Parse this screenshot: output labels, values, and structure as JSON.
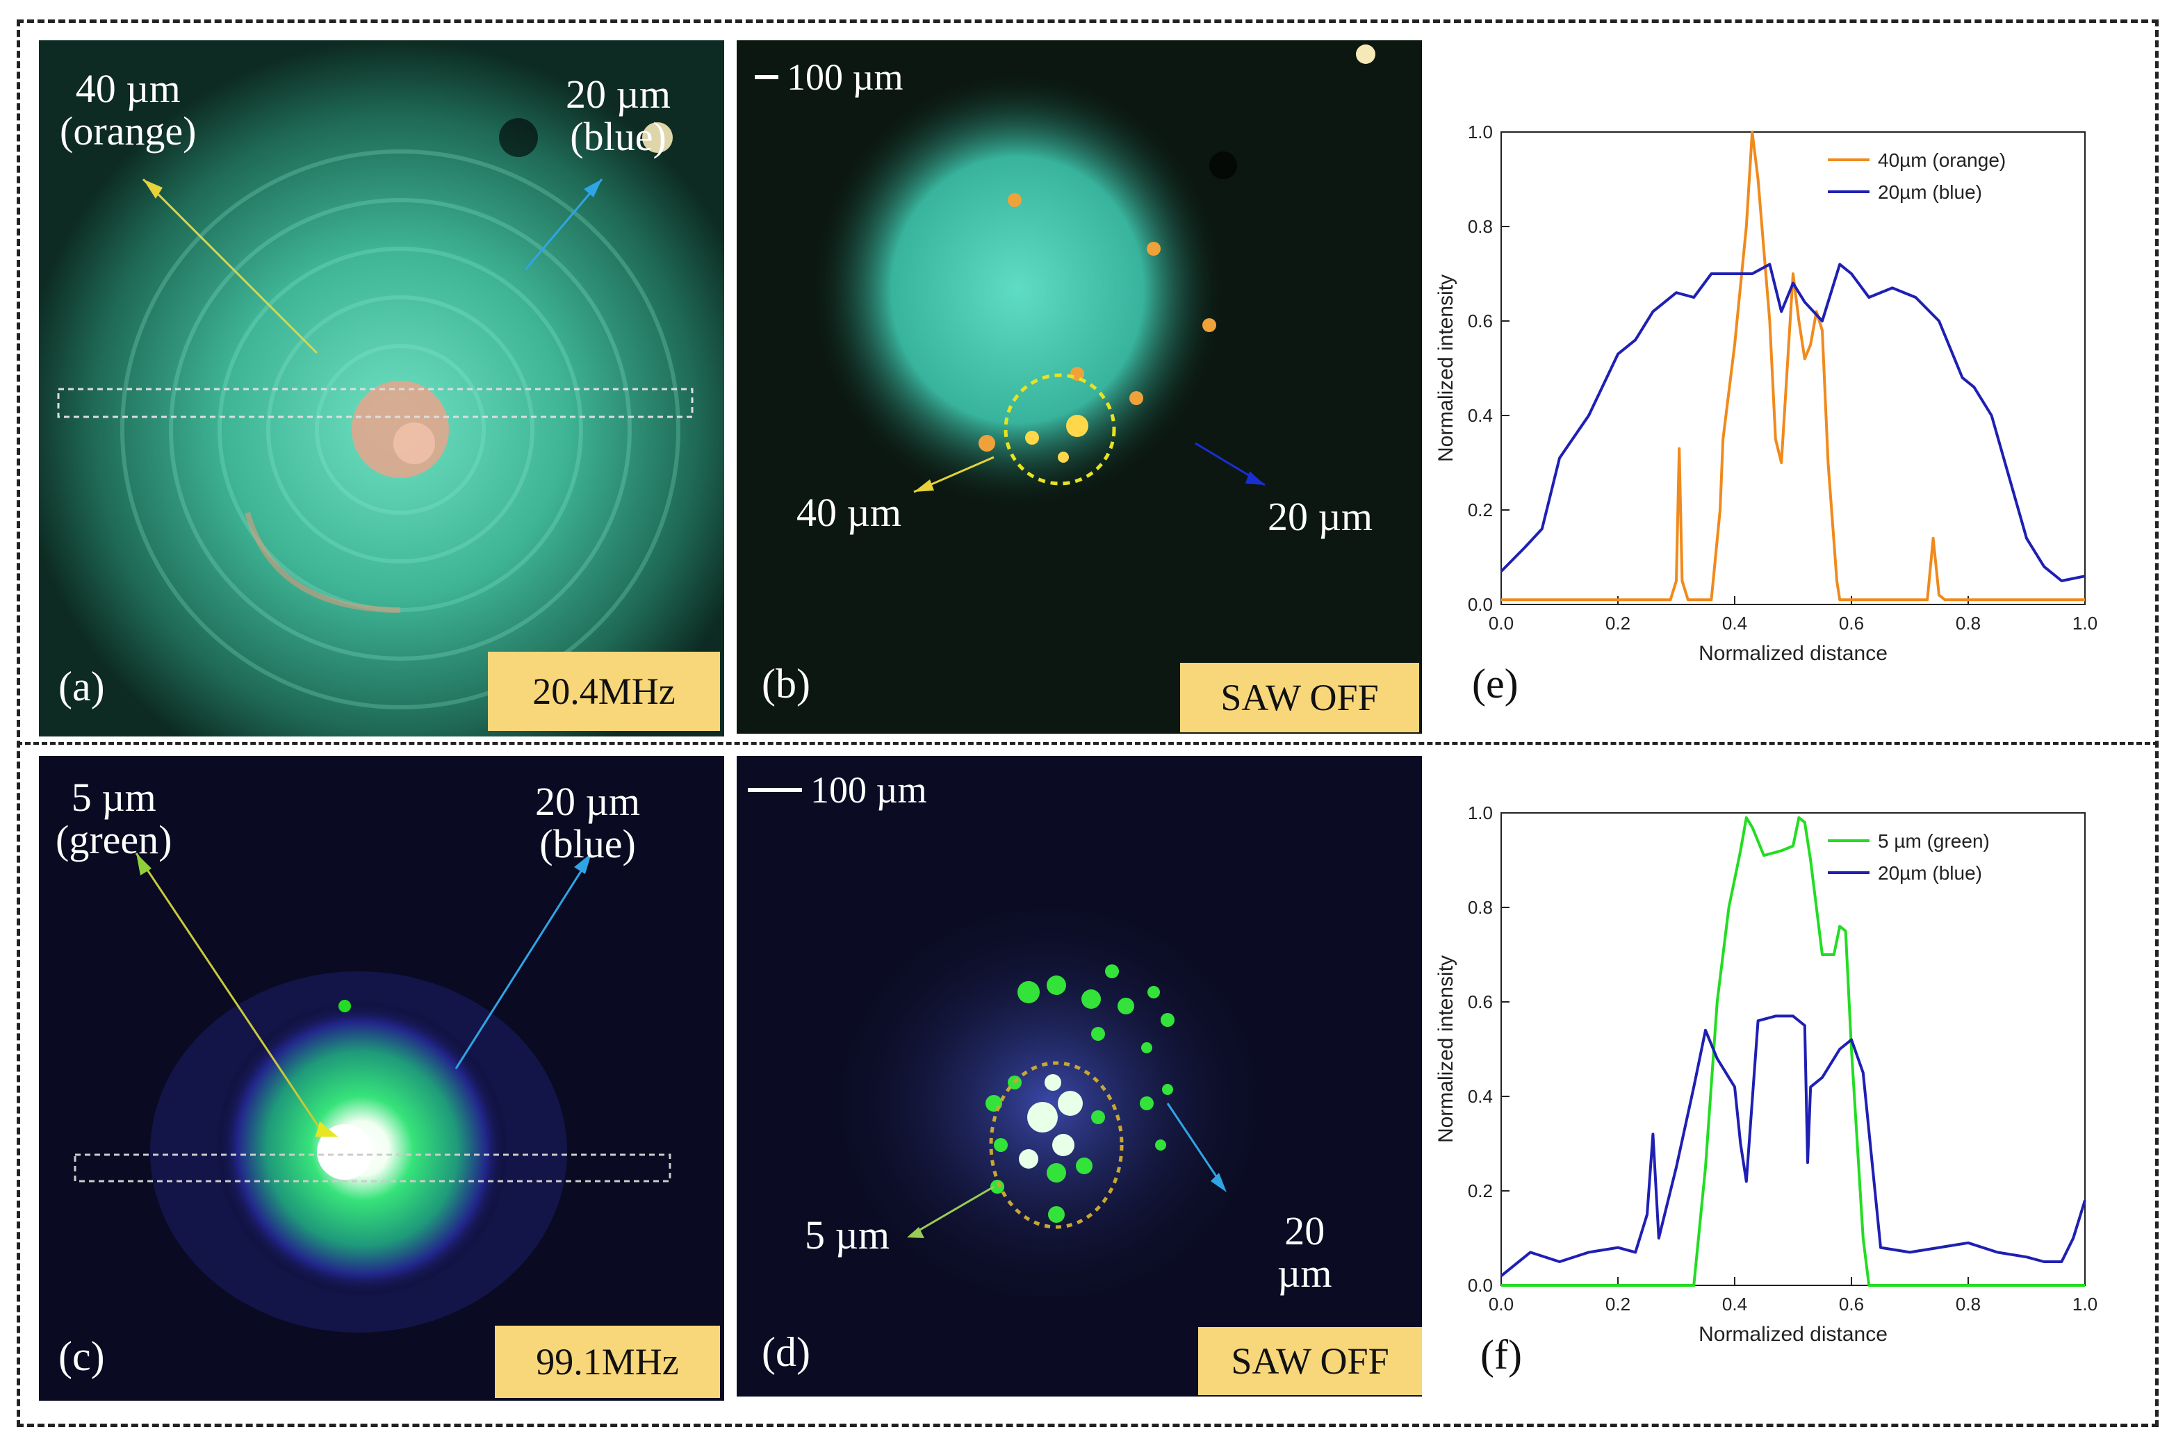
{
  "panels": {
    "a": {
      "label": "(a)",
      "freq": "20.4MHz",
      "ann_left": [
        "40 µm",
        "(orange)"
      ],
      "ann_right": [
        "20 µm",
        "(blue)"
      ]
    },
    "b": {
      "label": "(b)",
      "badge": "SAW OFF",
      "scale": "100 µm",
      "ann_left": "40 µm",
      "ann_right": "20 µm"
    },
    "c": {
      "label": "(c)",
      "freq": "99.1MHz",
      "ann_left": [
        "5 µm",
        "(green)"
      ],
      "ann_right": [
        "20 µm",
        "(blue)"
      ]
    },
    "d": {
      "label": "(d)",
      "badge": "SAW OFF",
      "scale": "100 µm",
      "ann_left": "5 µm",
      "ann_right": [
        "20",
        "µm"
      ]
    },
    "e": {
      "label": "(e)"
    },
    "f": {
      "label": "(f)"
    }
  },
  "colors": {
    "orange": "#f08a1c",
    "blue": "#1f1fb4",
    "green": "#22dd22",
    "badge": "#f8d77a"
  },
  "chart_data": [
    {
      "type": "line",
      "panel": "e",
      "xlabel": "Normalized distance",
      "ylabel": "Normalized intensity",
      "xlim": [
        0,
        1.0
      ],
      "ylim": [
        0,
        1.0
      ],
      "xticks": [
        "0.0",
        "0.2",
        "0.4",
        "0.6",
        "0.8",
        "1.0"
      ],
      "yticks": [
        "0.0",
        "0.2",
        "0.4",
        "0.6",
        "0.8",
        "1.0"
      ],
      "legend": "top-right",
      "series": [
        {
          "name": "40µm (orange)",
          "color": "#f08a1c",
          "x": [
            0,
            0.29,
            0.3,
            0.305,
            0.31,
            0.32,
            0.36,
            0.375,
            0.38,
            0.4,
            0.42,
            0.43,
            0.44,
            0.46,
            0.47,
            0.48,
            0.49,
            0.5,
            0.51,
            0.52,
            0.53,
            0.54,
            0.55,
            0.56,
            0.575,
            0.58,
            0.73,
            0.74,
            0.75,
            0.76,
            1.0
          ],
          "y": [
            0.01,
            0.01,
            0.05,
            0.33,
            0.05,
            0.01,
            0.01,
            0.2,
            0.35,
            0.55,
            0.8,
            1.0,
            0.9,
            0.6,
            0.35,
            0.3,
            0.5,
            0.7,
            0.6,
            0.52,
            0.55,
            0.62,
            0.58,
            0.3,
            0.05,
            0.01,
            0.01,
            0.14,
            0.02,
            0.01,
            0.01
          ]
        },
        {
          "name": "20µm (blue)",
          "color": "#1f1fb4",
          "x": [
            0,
            0.04,
            0.07,
            0.1,
            0.15,
            0.2,
            0.23,
            0.26,
            0.3,
            0.33,
            0.36,
            0.4,
            0.43,
            0.46,
            0.48,
            0.5,
            0.52,
            0.55,
            0.58,
            0.6,
            0.63,
            0.67,
            0.71,
            0.75,
            0.79,
            0.81,
            0.84,
            0.87,
            0.9,
            0.93,
            0.96,
            1.0
          ],
          "y": [
            0.07,
            0.12,
            0.16,
            0.31,
            0.4,
            0.53,
            0.56,
            0.62,
            0.66,
            0.65,
            0.7,
            0.7,
            0.7,
            0.72,
            0.62,
            0.68,
            0.64,
            0.6,
            0.72,
            0.7,
            0.65,
            0.67,
            0.65,
            0.6,
            0.48,
            0.46,
            0.4,
            0.27,
            0.14,
            0.08,
            0.05,
            0.06
          ]
        }
      ]
    },
    {
      "type": "line",
      "panel": "f",
      "xlabel": "Normalized distance",
      "ylabel": "Normalized intensity",
      "xlim": [
        0,
        1.0
      ],
      "ylim": [
        0,
        1.0
      ],
      "xticks": [
        "0.0",
        "0.2",
        "0.4",
        "0.6",
        "0.8",
        "1.0"
      ],
      "yticks": [
        "0.0",
        "0.2",
        "0.4",
        "0.6",
        "0.8",
        "1.0"
      ],
      "legend": "top-right",
      "series": [
        {
          "name": "5 µm  (green)",
          "color": "#22dd22",
          "x": [
            0,
            0.33,
            0.35,
            0.37,
            0.39,
            0.41,
            0.42,
            0.43,
            0.45,
            0.48,
            0.5,
            0.51,
            0.52,
            0.53,
            0.55,
            0.57,
            0.58,
            0.59,
            0.6,
            0.62,
            0.63,
            1.0
          ],
          "y": [
            0.0,
            0.0,
            0.25,
            0.6,
            0.8,
            0.92,
            0.99,
            0.97,
            0.91,
            0.92,
            0.93,
            0.99,
            0.98,
            0.9,
            0.7,
            0.7,
            0.76,
            0.75,
            0.5,
            0.1,
            0.0,
            0.0
          ]
        },
        {
          "name": "20µm (blue)",
          "color": "#1f1fb4",
          "x": [
            0,
            0.05,
            0.1,
            0.15,
            0.2,
            0.23,
            0.25,
            0.26,
            0.27,
            0.3,
            0.33,
            0.35,
            0.37,
            0.4,
            0.41,
            0.42,
            0.44,
            0.47,
            0.5,
            0.52,
            0.525,
            0.53,
            0.55,
            0.58,
            0.6,
            0.62,
            0.65,
            0.7,
            0.75,
            0.8,
            0.85,
            0.9,
            0.93,
            0.96,
            0.98,
            1.0
          ],
          "y": [
            0.02,
            0.07,
            0.05,
            0.07,
            0.08,
            0.07,
            0.15,
            0.32,
            0.1,
            0.25,
            0.42,
            0.54,
            0.48,
            0.42,
            0.3,
            0.22,
            0.56,
            0.57,
            0.57,
            0.55,
            0.26,
            0.42,
            0.44,
            0.5,
            0.52,
            0.45,
            0.08,
            0.07,
            0.08,
            0.09,
            0.07,
            0.06,
            0.05,
            0.05,
            0.1,
            0.18
          ]
        }
      ]
    }
  ]
}
